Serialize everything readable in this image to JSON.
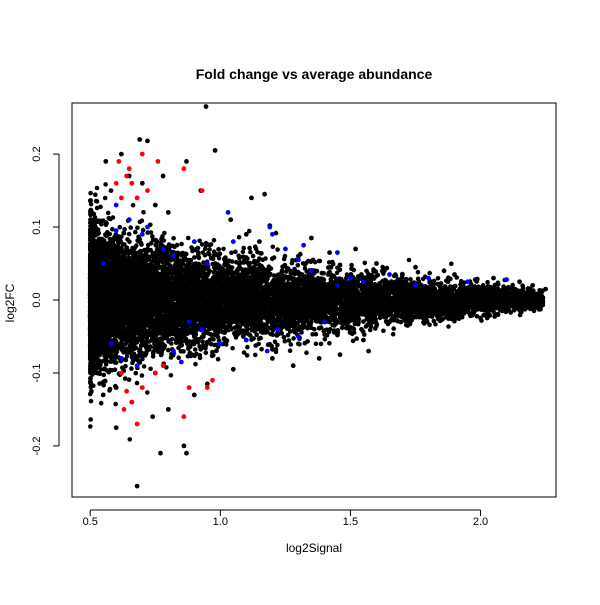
{
  "chart_data": {
    "type": "scatter",
    "title": "Fold change vs average abundance",
    "xlabel": "log2Signal",
    "ylabel": "log2FC",
    "xlim": [
      0.43,
      2.29
    ],
    "ylim": [
      -0.27,
      0.27
    ],
    "x_ticks": [
      0.5,
      1.0,
      1.5,
      2.0
    ],
    "x_tick_labels": [
      "0.5",
      "1.0",
      "1.5",
      "2.0"
    ],
    "y_ticks": [
      -0.2,
      -0.1,
      0.0,
      0.1,
      0.2
    ],
    "y_tick_labels": [
      "-0.2",
      "-0.1",
      "0.0",
      "0.1",
      "0.2"
    ],
    "grid": false,
    "colors": {
      "main": "#000000",
      "blue": "#0000ff",
      "red": "#ff0000"
    },
    "series": [
      {
        "color": "#000000",
        "points": [
          [
            0.945,
            0.265
          ],
          [
            0.925,
            0.15
          ],
          [
            1.04,
            0.11
          ],
          [
            1.1,
            0.09
          ],
          [
            1.15,
            0.08
          ],
          [
            1.3,
            0.06
          ],
          [
            1.19,
            0.102
          ],
          [
            1.46,
            0.048
          ],
          [
            1.6,
            0.05
          ],
          [
            1.75,
            0.045
          ],
          [
            1.9,
            0.035
          ],
          [
            2.05,
            0.03
          ],
          [
            2.2,
            0.02
          ],
          [
            2.25,
            0.015
          ],
          [
            2.24,
            0.003
          ],
          [
            2.2,
            -0.005
          ],
          [
            2.1,
            0.01
          ],
          [
            1.95,
            -0.015
          ],
          [
            1.8,
            -0.022
          ],
          [
            1.65,
            -0.03
          ],
          [
            1.45,
            -0.048
          ],
          [
            1.3,
            -0.06
          ],
          [
            1.2,
            -0.08
          ],
          [
            1.05,
            -0.095
          ],
          [
            0.95,
            -0.115
          ],
          [
            0.86,
            -0.2
          ],
          [
            0.87,
            -0.21
          ],
          [
            0.77,
            -0.21
          ],
          [
            0.68,
            -0.255
          ],
          [
            0.6,
            -0.175
          ],
          [
            0.55,
            -0.13
          ],
          [
            0.52,
            -0.09
          ],
          [
            0.5,
            -0.02
          ],
          [
            0.5,
            0.03
          ],
          [
            0.52,
            0.08
          ],
          [
            0.56,
            0.19
          ],
          [
            0.62,
            0.2
          ],
          [
            0.69,
            0.22
          ],
          [
            0.72,
            0.218
          ],
          [
            0.87,
            0.19
          ],
          [
            0.78,
            0.17
          ],
          [
            0.98,
            0.205
          ],
          [
            1.17,
            0.145
          ],
          [
            1.12,
            0.14
          ],
          [
            1.35,
            0.085
          ],
          [
            1.42,
            0.065
          ],
          [
            1.52,
            0.07
          ],
          [
            1.57,
            -0.07
          ],
          [
            1.46,
            -0.075
          ],
          [
            1.38,
            -0.08
          ],
          [
            1.28,
            -0.09
          ],
          [
            1.63,
            0.04
          ],
          [
            1.7,
            0.035
          ],
          [
            1.86,
            0.04
          ],
          [
            2.0,
            -0.012
          ],
          [
            2.15,
            0.025
          ],
          [
            2.08,
            -0.008
          ],
          [
            1.98,
            0.028
          ],
          [
            1.72,
            -0.035
          ],
          [
            1.55,
            -0.055
          ],
          [
            0.58,
            0.15
          ],
          [
            0.65,
            0.17
          ],
          [
            0.7,
            0.16
          ],
          [
            0.75,
            0.13
          ],
          [
            0.8,
            0.12
          ],
          [
            0.6,
            -0.12
          ],
          [
            0.66,
            -0.14
          ],
          [
            0.74,
            -0.16
          ],
          [
            0.8,
            -0.15
          ],
          [
            0.9,
            -0.13
          ],
          [
            0.63,
            0.0
          ],
          [
            0.7,
            -0.02
          ],
          [
            0.8,
            0.01
          ],
          [
            0.9,
            -0.01
          ],
          [
            1.0,
            0.02
          ],
          [
            1.1,
            -0.005
          ],
          [
            1.25,
            0.008
          ],
          [
            1.4,
            -0.004
          ],
          [
            1.55,
            0.006
          ],
          [
            1.75,
            -0.002
          ],
          [
            1.9,
            0.004
          ],
          [
            2.05,
            -0.002
          ]
        ]
      },
      {
        "color": "#0000ff",
        "points": [
          [
            0.6,
            0.095
          ],
          [
            0.65,
            0.11
          ],
          [
            0.7,
            0.09
          ],
          [
            0.78,
            0.07
          ],
          [
            0.82,
            0.06
          ],
          [
            0.9,
            0.08
          ],
          [
            1.03,
            0.12
          ],
          [
            1.05,
            0.08
          ],
          [
            1.19,
            0.1
          ],
          [
            1.2,
            0.09
          ],
          [
            1.25,
            0.07
          ],
          [
            1.3,
            0.055
          ],
          [
            1.32,
            0.075
          ],
          [
            1.35,
            0.04
          ],
          [
            1.45,
            0.065
          ],
          [
            1.5,
            0.03
          ],
          [
            1.55,
            0.025
          ],
          [
            1.65,
            0.035
          ],
          [
            1.75,
            0.02
          ],
          [
            1.8,
            0.03
          ],
          [
            1.95,
            0.025
          ],
          [
            2.1,
            0.028
          ],
          [
            0.58,
            -0.06
          ],
          [
            0.62,
            -0.08
          ],
          [
            0.68,
            -0.09
          ],
          [
            0.75,
            -0.1
          ],
          [
            0.82,
            -0.07
          ],
          [
            0.85,
            -0.085
          ],
          [
            0.93,
            -0.04
          ],
          [
            1.0,
            -0.06
          ],
          [
            1.1,
            -0.055
          ],
          [
            1.18,
            -0.07
          ],
          [
            1.22,
            -0.04
          ],
          [
            1.3,
            -0.05
          ],
          [
            1.4,
            -0.03
          ],
          [
            1.45,
            0.02
          ],
          [
            0.55,
            0.05
          ],
          [
            0.6,
            0.13
          ],
          [
            0.72,
            0.1
          ],
          [
            0.88,
            -0.03
          ],
          [
            0.95,
            0.05
          ]
        ]
      },
      {
        "color": "#ff0000",
        "points": [
          [
            0.61,
            0.19
          ],
          [
            0.64,
            0.17
          ],
          [
            0.66,
            0.16
          ],
          [
            0.68,
            0.14
          ],
          [
            0.7,
            0.2
          ],
          [
            0.72,
            0.15
          ],
          [
            0.76,
            0.19
          ],
          [
            0.86,
            0.18
          ],
          [
            0.93,
            0.15
          ],
          [
            0.62,
            -0.1
          ],
          [
            0.64,
            -0.125
          ],
          [
            0.66,
            -0.14
          ],
          [
            0.68,
            -0.17
          ],
          [
            0.7,
            -0.12
          ],
          [
            0.75,
            -0.1
          ],
          [
            0.78,
            -0.09
          ],
          [
            0.86,
            -0.16
          ],
          [
            0.88,
            -0.12
          ],
          [
            0.95,
            -0.12
          ],
          [
            0.97,
            -0.11
          ],
          [
            0.63,
            -0.15
          ],
          [
            0.6,
            0.16
          ],
          [
            0.65,
            0.18
          ],
          [
            0.62,
            0.14
          ]
        ]
      }
    ],
    "cloud": {
      "color": "#000000",
      "count": 11000,
      "x_range": [
        0.5,
        2.24
      ],
      "x_decay": 2.0,
      "y_sd_at_min_x": 0.05,
      "y_sd_at_max_x": 0.006
    }
  }
}
